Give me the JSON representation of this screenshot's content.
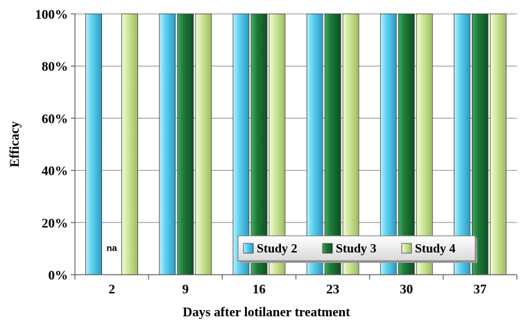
{
  "chart_data": {
    "type": "bar",
    "categories": [
      "2",
      "9",
      "16",
      "23",
      "30",
      "37"
    ],
    "series": [
      {
        "name": "Study 2",
        "values": [
          100,
          100,
          100,
          100,
          100,
          100
        ],
        "color": "#5bcff0"
      },
      {
        "name": "Study 3",
        "values": [
          null,
          100,
          100,
          100,
          100,
          100
        ],
        "color": "#1e7a38"
      },
      {
        "name": "Study 4",
        "values": [
          100,
          100,
          100,
          100,
          100,
          100
        ],
        "color": "#cfe79c"
      }
    ],
    "xlabel": "Days after lotilaner treatment",
    "ylabel": "Efficacy",
    "ylim": [
      0,
      100
    ],
    "yticks": [
      "0%",
      "20%",
      "40%",
      "60%",
      "80%",
      "100%"
    ],
    "grid": true,
    "legend_position": "bottom-right",
    "annotations": [
      {
        "text": "na",
        "category": "2",
        "series": "Study 3"
      }
    ]
  }
}
